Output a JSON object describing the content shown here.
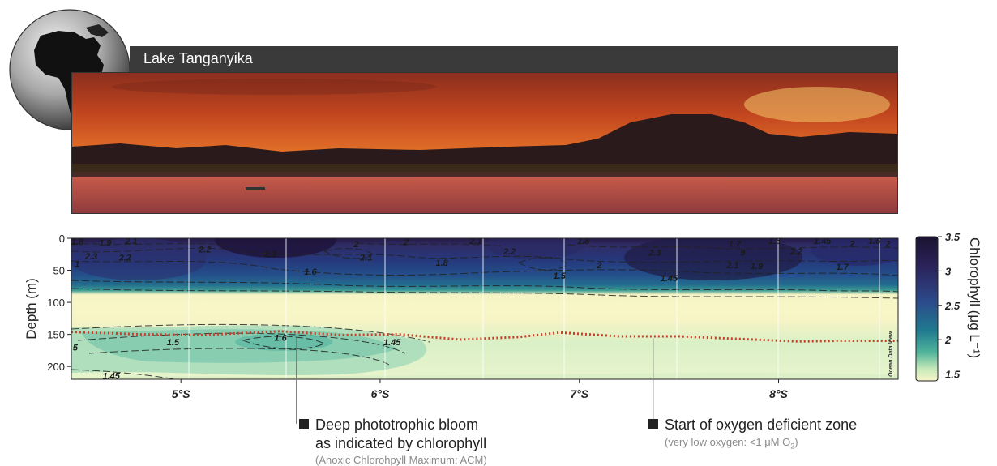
{
  "banner": {
    "title": "Lake Tanganyika"
  },
  "chart_data": {
    "type": "heatmap",
    "title": "",
    "xlabel": "",
    "ylabel": "Depth (m)",
    "xlim": [
      4.45,
      8.6
    ],
    "ylim": [
      0,
      220
    ],
    "x_ticks": [
      "5°S",
      "6°S",
      "7°S",
      "8°S"
    ],
    "x_tick_values": [
      5,
      6,
      7,
      8
    ],
    "y_ticks": [
      "0",
      "50",
      "100",
      "150",
      "200"
    ],
    "y_tick_values": [
      0,
      50,
      100,
      150,
      200
    ],
    "colorbar": {
      "label": "Chlorophyll (μg L⁻¹)",
      "ticks": [
        "1.5",
        "2",
        "2.5",
        "3",
        "3.5"
      ],
      "tick_values": [
        1.5,
        2,
        2.5,
        3,
        3.5
      ],
      "range": [
        1.4,
        3.5
      ]
    },
    "watermark": "Ocean Data View",
    "contour_labels": [
      {
        "text": "1.8",
        "x": 4.48,
        "y": 5
      },
      {
        "text": "1.9",
        "x": 4.62,
        "y": 7
      },
      {
        "text": "2.1",
        "x": 4.75,
        "y": 4
      },
      {
        "text": "2.3",
        "x": 4.55,
        "y": 28
      },
      {
        "text": "2.2",
        "x": 4.72,
        "y": 30
      },
      {
        "text": "2.2",
        "x": 5.12,
        "y": 17
      },
      {
        "text": "2",
        "x": 5.88,
        "y": 9
      },
      {
        "text": "2",
        "x": 6.13,
        "y": 6
      },
      {
        "text": "2.1",
        "x": 6.48,
        "y": 4
      },
      {
        "text": "2.2",
        "x": 6.65,
        "y": 20
      },
      {
        "text": "1.8",
        "x": 7.02,
        "y": 4
      },
      {
        "text": "2.3",
        "x": 5.45,
        "y": 24
      },
      {
        "text": "2.1",
        "x": 5.93,
        "y": 30
      },
      {
        "text": "1.8",
        "x": 6.31,
        "y": 38
      },
      {
        "text": "1.6",
        "x": 5.65,
        "y": 52
      },
      {
        "text": "2",
        "x": 7.1,
        "y": 42
      },
      {
        "text": "2.3",
        "x": 7.38,
        "y": 22
      },
      {
        "text": "1.5",
        "x": 6.9,
        "y": 58
      },
      {
        "text": "1.45",
        "x": 7.45,
        "y": 62
      },
      {
        "text": "2.1",
        "x": 7.77,
        "y": 42
      },
      {
        "text": "1.9",
        "x": 7.89,
        "y": 43
      },
      {
        "text": "2.2",
        "x": 8.09,
        "y": 20
      },
      {
        "text": "1.7",
        "x": 8.32,
        "y": 44
      },
      {
        "text": "1.7",
        "x": 7.78,
        "y": 8
      },
      {
        "text": "1.5",
        "x": 7.98,
        "y": 4
      },
      {
        "text": "1.45",
        "x": 8.22,
        "y": 4
      },
      {
        "text": "2",
        "x": 8.37,
        "y": 8
      },
      {
        "text": "1.6",
        "x": 8.48,
        "y": 4
      },
      {
        "text": "1.5",
        "x": 4.96,
        "y": 162
      },
      {
        "text": "1.6",
        "x": 5.5,
        "y": 155
      },
      {
        "text": "1.45",
        "x": 6.06,
        "y": 162
      },
      {
        "text": "1.45",
        "x": 4.65,
        "y": 214
      },
      {
        "text": "1",
        "x": 4.48,
        "y": 40
      },
      {
        "text": "5",
        "x": 4.47,
        "y": 170
      },
      {
        "text": "9",
        "x": 7.82,
        "y": 22
      },
      {
        "text": "2",
        "x": 8.55,
        "y": 8
      }
    ],
    "oxygen_boundary": {
      "x": [
        4.45,
        4.8,
        5.1,
        5.5,
        5.8,
        6.1,
        6.4,
        6.7,
        6.9,
        7.2,
        7.5,
        7.8,
        8.1,
        8.3,
        8.6
      ],
      "depth": [
        146,
        150,
        151,
        145,
        151,
        150,
        158,
        154,
        147,
        153,
        153,
        157,
        161,
        160,
        160
      ]
    }
  },
  "annotations": [
    {
      "label_line1": "Deep phototrophic bloom",
      "label_line2": "as indicated by chlorophyll",
      "sub": "(Anoxic Chlorohpyll Maximum: ACM)",
      "pointer_x": 5.58,
      "pointer_depth": 155
    },
    {
      "label_line1": "Start of oxygen deficient zone",
      "sub_prefix": "(very low oxygen: <1 μM O",
      "sub_subscript": "2",
      "sub_suffix": ")",
      "pointer_x": 7.37,
      "pointer_depth": 156
    }
  ]
}
